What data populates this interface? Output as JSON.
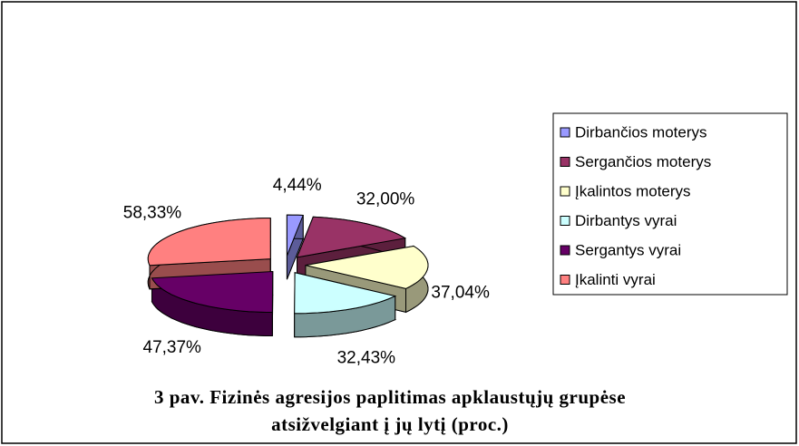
{
  "chart_data": {
    "type": "pie3d",
    "categories": [
      "Dirbančios moterys",
      "Sergančios moterys",
      "Įkalintos moterys",
      "Dirbantys vyrai",
      "Sergantys vyrai",
      "Įkalinti vyrai"
    ],
    "values": [
      4.44,
      32.0,
      37.04,
      32.43,
      47.37,
      58.33
    ],
    "value_labels": [
      "4,44%",
      "32,00%",
      "37,04%",
      "32,43%",
      "47,37%",
      "58,33%"
    ],
    "colors": [
      "#9999ff",
      "#993366",
      "#ffffcc",
      "#ccffff",
      "#660066",
      "#ff8080"
    ],
    "legend": "right",
    "caption": [
      "3 pav. Fizinės agresijos paplitimas apklaustųjų grupėse",
      "atsižvelgiant į jų lytį (proc.)"
    ]
  }
}
